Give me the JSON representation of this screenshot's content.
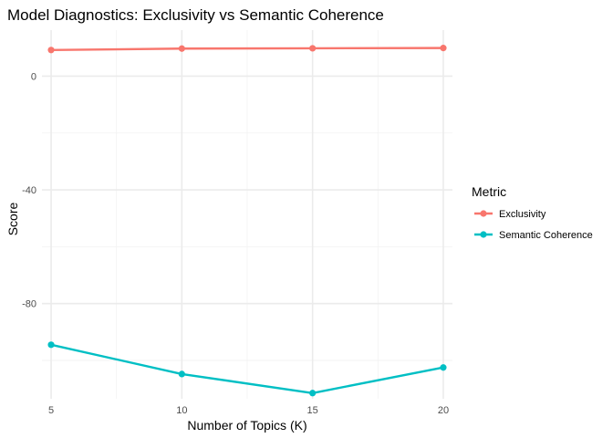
{
  "chart_data": {
    "type": "line",
    "title": "Model Diagnostics: Exclusivity vs Semantic Coherence",
    "xlabel": "Number of Topics (K)",
    "ylabel": "Score",
    "x": [
      5,
      10,
      15,
      20
    ],
    "xticks": [
      5,
      10,
      15,
      20
    ],
    "xlim": [
      4.65,
      20.35
    ],
    "yticks": [
      0,
      -40,
      -80
    ],
    "ylim": [
      -113.5,
      16.2
    ],
    "grid": true,
    "legend": {
      "title": "Metric",
      "position": "right"
    },
    "series": [
      {
        "name": "Exclusivity",
        "color": "#F8766D",
        "values": [
          9.2,
          9.7,
          9.8,
          9.9
        ]
      },
      {
        "name": "Semantic Coherence",
        "color": "#00BFC4",
        "values": [
          -94.5,
          -104.8,
          -111.5,
          -102.5
        ]
      }
    ]
  }
}
